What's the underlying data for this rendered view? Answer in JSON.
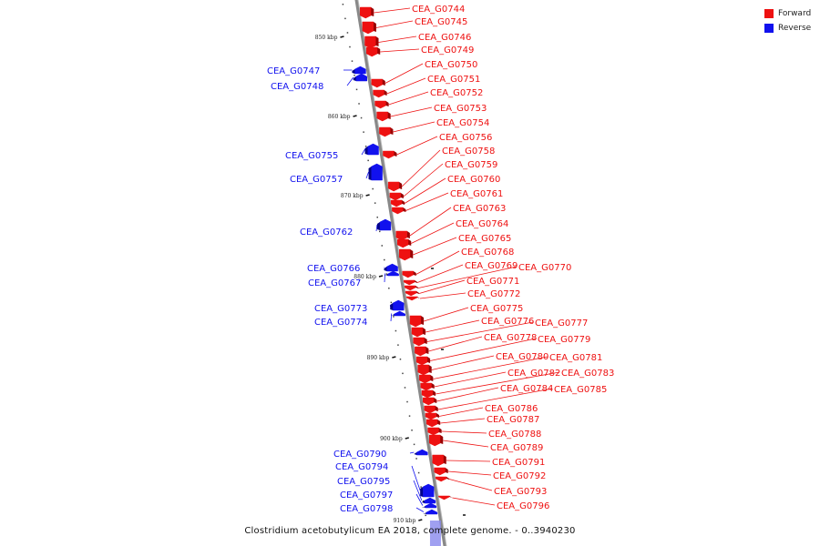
{
  "caption": "Clostridium acetobutylicum EA 2018, complete genome. - 0..3940230",
  "legend": [
    {
      "label": "Forward",
      "color": "#ee1111"
    },
    {
      "label": "Reverse",
      "color": "#1111ee"
    }
  ],
  "colors": {
    "forward": "#ee1111",
    "reverse": "#1111ee",
    "backbone": "#888888"
  },
  "ticks": [
    "850 kbp",
    "860 kbp",
    "870 kbp",
    "880 kbp",
    "890 kbp",
    "900 kbp",
    "910 kbp"
  ],
  "genes": [
    {
      "name": "CEA_G0744",
      "strand": "forward"
    },
    {
      "name": "CEA_G0745",
      "strand": "forward"
    },
    {
      "name": "CEA_G0746",
      "strand": "forward"
    },
    {
      "name": "CEA_G0747",
      "strand": "reverse"
    },
    {
      "name": "CEA_G0748",
      "strand": "reverse"
    },
    {
      "name": "CEA_G0749",
      "strand": "forward"
    },
    {
      "name": "CEA_G0750",
      "strand": "forward"
    },
    {
      "name": "CEA_G0751",
      "strand": "forward"
    },
    {
      "name": "CEA_G0752",
      "strand": "forward"
    },
    {
      "name": "CEA_G0753",
      "strand": "forward"
    },
    {
      "name": "CEA_G0754",
      "strand": "forward"
    },
    {
      "name": "CEA_G0755",
      "strand": "reverse"
    },
    {
      "name": "CEA_G0756",
      "strand": "forward"
    },
    {
      "name": "CEA_G0757",
      "strand": "reverse"
    },
    {
      "name": "CEA_G0758",
      "strand": "forward"
    },
    {
      "name": "CEA_G0759",
      "strand": "forward"
    },
    {
      "name": "CEA_G0760",
      "strand": "forward"
    },
    {
      "name": "CEA_G0761",
      "strand": "forward"
    },
    {
      "name": "CEA_G0762",
      "strand": "reverse"
    },
    {
      "name": "CEA_G0763",
      "strand": "forward"
    },
    {
      "name": "CEA_G0764",
      "strand": "forward"
    },
    {
      "name": "CEA_G0765",
      "strand": "forward"
    },
    {
      "name": "CEA_G0766",
      "strand": "reverse"
    },
    {
      "name": "CEA_G0767",
      "strand": "reverse"
    },
    {
      "name": "CEA_G0768",
      "strand": "forward"
    },
    {
      "name": "CEA_G0769",
      "strand": "forward"
    },
    {
      "name": "CEA_G0770",
      "strand": "forward"
    },
    {
      "name": "CEA_G0771",
      "strand": "forward"
    },
    {
      "name": "CEA_G0772",
      "strand": "forward"
    },
    {
      "name": "CEA_G0773",
      "strand": "reverse"
    },
    {
      "name": "CEA_G0774",
      "strand": "reverse"
    },
    {
      "name": "CEA_G0775",
      "strand": "forward"
    },
    {
      "name": "CEA_G0776",
      "strand": "forward"
    },
    {
      "name": "CEA_G0777",
      "strand": "forward"
    },
    {
      "name": "CEA_G0778",
      "strand": "forward"
    },
    {
      "name": "CEA_G0779",
      "strand": "forward"
    },
    {
      "name": "CEA_G0780",
      "strand": "forward"
    },
    {
      "name": "CEA_G0781",
      "strand": "forward"
    },
    {
      "name": "CEA_G0782",
      "strand": "forward"
    },
    {
      "name": "CEA_G0783",
      "strand": "forward"
    },
    {
      "name": "CEA_G0784",
      "strand": "forward"
    },
    {
      "name": "CEA_G0785",
      "strand": "forward"
    },
    {
      "name": "CEA_G0786",
      "strand": "forward"
    },
    {
      "name": "CEA_G0787",
      "strand": "forward"
    },
    {
      "name": "CEA_G0788",
      "strand": "forward"
    },
    {
      "name": "CEA_G0789",
      "strand": "forward"
    },
    {
      "name": "CEA_G0790",
      "strand": "reverse"
    },
    {
      "name": "CEA_G0791",
      "strand": "forward"
    },
    {
      "name": "CEA_G0792",
      "strand": "forward"
    },
    {
      "name": "CEA_G0793",
      "strand": "forward"
    },
    {
      "name": "CEA_G0794",
      "strand": "reverse"
    },
    {
      "name": "CEA_G0795",
      "strand": "reverse"
    },
    {
      "name": "CEA_G0796",
      "strand": "forward"
    },
    {
      "name": "CEA_G0797",
      "strand": "reverse"
    },
    {
      "name": "CEA_G0798",
      "strand": "reverse"
    }
  ]
}
